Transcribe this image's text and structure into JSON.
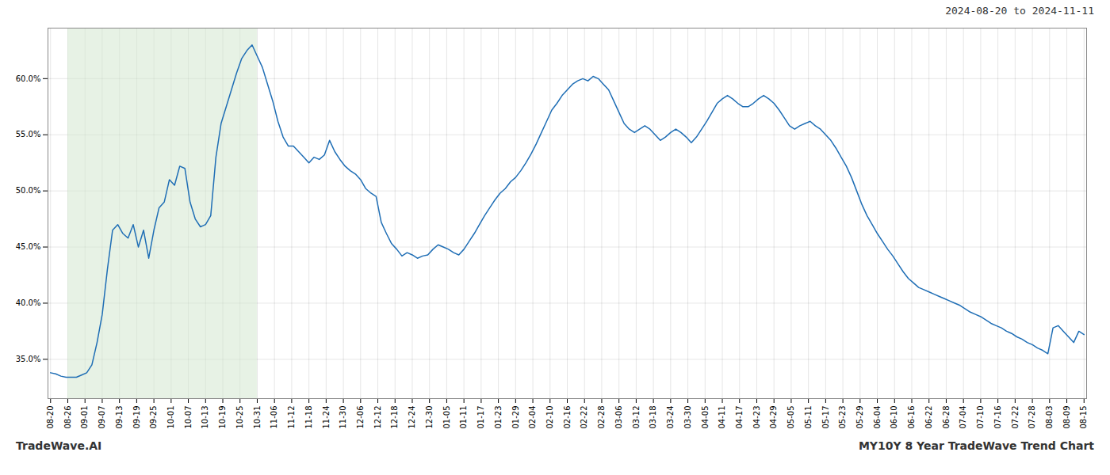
{
  "chart_data": {
    "type": "line",
    "title": "2024-08-20 to 2024-11-11",
    "footer": [
      "TradeWave.AI",
      "MY10Y 8 Year TradeWave Trend Chart"
    ],
    "color": "#1f6eb5",
    "grid": true,
    "shade": {
      "from": "08-26",
      "to": "10-31",
      "color": "#d4e8d0"
    },
    "xlim": [
      -0.5,
      200.5
    ],
    "xticks": [
      {
        "value": 0,
        "label": "08-20"
      },
      {
        "value": 3.3333,
        "label": "08-26"
      },
      {
        "value": 6.6667,
        "label": "09-01"
      },
      {
        "value": 10,
        "label": "09-07"
      },
      {
        "value": 13.3333,
        "label": "09-13"
      },
      {
        "value": 16.6667,
        "label": "09-19"
      },
      {
        "value": 20,
        "label": "09-25"
      },
      {
        "value": 23.3333,
        "label": "10-01"
      },
      {
        "value": 26.6667,
        "label": "10-07"
      },
      {
        "value": 30,
        "label": "10-13"
      },
      {
        "value": 33.3333,
        "label": "10-19"
      },
      {
        "value": 36.6667,
        "label": "10-25"
      },
      {
        "value": 40,
        "label": "10-31"
      },
      {
        "value": 43.3333,
        "label": "11-06"
      },
      {
        "value": 46.6667,
        "label": "11-12"
      },
      {
        "value": 50,
        "label": "11-18"
      },
      {
        "value": 53.3333,
        "label": "11-24"
      },
      {
        "value": 56.6667,
        "label": "11-30"
      },
      {
        "value": 60,
        "label": "12-06"
      },
      {
        "value": 63.3333,
        "label": "12-12"
      },
      {
        "value": 66.6667,
        "label": "12-18"
      },
      {
        "value": 70,
        "label": "12-24"
      },
      {
        "value": 73.3333,
        "label": "12-30"
      },
      {
        "value": 76.6667,
        "label": "01-05"
      },
      {
        "value": 80,
        "label": "01-11"
      },
      {
        "value": 83.3333,
        "label": "01-17"
      },
      {
        "value": 86.6667,
        "label": "01-23"
      },
      {
        "value": 90,
        "label": "01-29"
      },
      {
        "value": 93.3333,
        "label": "02-04"
      },
      {
        "value": 96.6667,
        "label": "02-10"
      },
      {
        "value": 100,
        "label": "02-16"
      },
      {
        "value": 103.3333,
        "label": "02-22"
      },
      {
        "value": 106.6667,
        "label": "02-28"
      },
      {
        "value": 110,
        "label": "03-06"
      },
      {
        "value": 113.3333,
        "label": "03-12"
      },
      {
        "value": 116.6667,
        "label": "03-18"
      },
      {
        "value": 120,
        "label": "03-24"
      },
      {
        "value": 123.3333,
        "label": "03-30"
      },
      {
        "value": 126.6667,
        "label": "04-05"
      },
      {
        "value": 130,
        "label": "04-11"
      },
      {
        "value": 133.3333,
        "label": "04-17"
      },
      {
        "value": 136.6667,
        "label": "04-23"
      },
      {
        "value": 140,
        "label": "04-29"
      },
      {
        "value": 143.3333,
        "label": "05-05"
      },
      {
        "value": 146.6667,
        "label": "05-11"
      },
      {
        "value": 150,
        "label": "05-17"
      },
      {
        "value": 153.3333,
        "label": "05-23"
      },
      {
        "value": 156.6667,
        "label": "05-29"
      },
      {
        "value": 160,
        "label": "06-04"
      },
      {
        "value": 163.3333,
        "label": "06-10"
      },
      {
        "value": 166.6667,
        "label": "06-16"
      },
      {
        "value": 170,
        "label": "06-22"
      },
      {
        "value": 173.3333,
        "label": "06-28"
      },
      {
        "value": 176.6667,
        "label": "07-04"
      },
      {
        "value": 180,
        "label": "07-10"
      },
      {
        "value": 183.3333,
        "label": "07-16"
      },
      {
        "value": 186.6667,
        "label": "07-22"
      },
      {
        "value": 190,
        "label": "07-28"
      },
      {
        "value": 193.3333,
        "label": "08-03"
      },
      {
        "value": 196.6667,
        "label": "08-09"
      },
      {
        "value": 200,
        "label": "08-15"
      }
    ],
    "ylim": [
      0.315,
      0.645
    ],
    "yticks": [
      {
        "value": 0.35,
        "label": "35.0%"
      },
      {
        "value": 0.4,
        "label": "40.0%"
      },
      {
        "value": 0.45,
        "label": "45.0%"
      },
      {
        "value": 0.5,
        "label": "50.0%"
      },
      {
        "value": 0.55,
        "label": "55.0%"
      },
      {
        "value": 0.6,
        "label": "60.0%"
      }
    ],
    "values": [
      0.338,
      0.337,
      0.335,
      0.334,
      0.334,
      0.334,
      0.336,
      0.338,
      0.345,
      0.365,
      0.39,
      0.43,
      0.465,
      0.47,
      0.462,
      0.458,
      0.47,
      0.45,
      0.465,
      0.44,
      0.465,
      0.485,
      0.49,
      0.51,
      0.505,
      0.522,
      0.52,
      0.49,
      0.475,
      0.468,
      0.47,
      0.478,
      0.53,
      0.56,
      0.575,
      0.59,
      0.605,
      0.618,
      0.625,
      0.63,
      0.62,
      0.61,
      0.595,
      0.58,
      0.562,
      0.548,
      0.54,
      0.54,
      0.535,
      0.53,
      0.525,
      0.53,
      0.528,
      0.532,
      0.545,
      0.535,
      0.528,
      0.522,
      0.518,
      0.515,
      0.51,
      0.502,
      0.498,
      0.495,
      0.472,
      0.462,
      0.453,
      0.448,
      0.442,
      0.445,
      0.443,
      0.44,
      0.442,
      0.443,
      0.448,
      0.452,
      0.45,
      0.448,
      0.445,
      0.443,
      0.448,
      0.455,
      0.462,
      0.47,
      0.478,
      0.485,
      0.492,
      0.498,
      0.502,
      0.508,
      0.512,
      0.518,
      0.525,
      0.533,
      0.542,
      0.552,
      0.562,
      0.572,
      0.578,
      0.585,
      0.59,
      0.595,
      0.598,
      0.6,
      0.598,
      0.602,
      0.6,
      0.595,
      0.59,
      0.58,
      0.57,
      0.56,
      0.555,
      0.552,
      0.555,
      0.558,
      0.555,
      0.55,
      0.545,
      0.548,
      0.552,
      0.555,
      0.552,
      0.548,
      0.543,
      0.548,
      0.555,
      0.562,
      0.57,
      0.578,
      0.582,
      0.585,
      0.582,
      0.578,
      0.575,
      0.575,
      0.578,
      0.582,
      0.585,
      0.582,
      0.578,
      0.572,
      0.565,
      0.558,
      0.555,
      0.558,
      0.56,
      0.562,
      0.558,
      0.555,
      0.55,
      0.545,
      0.538,
      0.53,
      0.522,
      0.512,
      0.5,
      0.488,
      0.478,
      0.47,
      0.462,
      0.455,
      0.448,
      0.442,
      0.435,
      0.428,
      0.422,
      0.418,
      0.414,
      0.412,
      0.41,
      0.408,
      0.406,
      0.404,
      0.402,
      0.4,
      0.398,
      0.395,
      0.392,
      0.39,
      0.388,
      0.385,
      0.382,
      0.38,
      0.378,
      0.375,
      0.373,
      0.37,
      0.368,
      0.365,
      0.363,
      0.36,
      0.358,
      0.355,
      0.378,
      0.38,
      0.375,
      0.37,
      0.365,
      0.375,
      0.372
    ]
  }
}
